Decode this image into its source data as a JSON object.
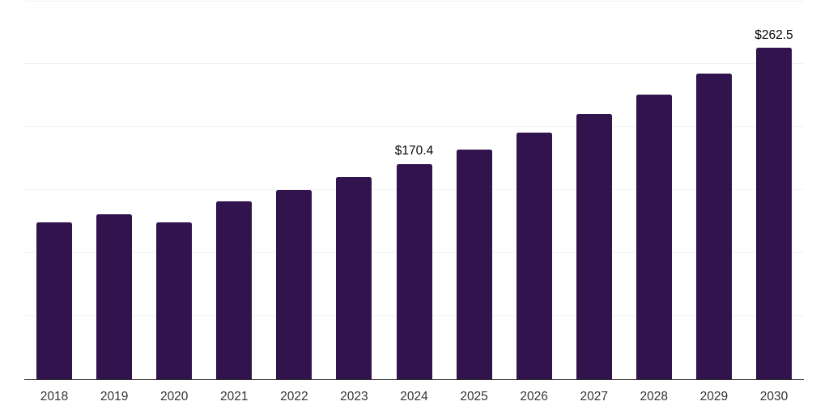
{
  "chart_data": {
    "type": "bar",
    "title": "",
    "xlabel": "",
    "ylabel": "",
    "categories": [
      "2018",
      "2019",
      "2020",
      "2021",
      "2022",
      "2023",
      "2024",
      "2025",
      "2026",
      "2027",
      "2028",
      "2029",
      "2030"
    ],
    "values": [
      123.9,
      130.3,
      124.2,
      141.0,
      149.9,
      159.8,
      170.4,
      182.2,
      195.5,
      210.2,
      225.3,
      242.5,
      262.5
    ],
    "labeled_points": [
      {
        "category": "2024",
        "label": "$170.4"
      },
      {
        "category": "2030",
        "label": "$262.5"
      }
    ],
    "ylim": [
      0,
      300
    ],
    "gridline_step": 50,
    "grid": true,
    "legend_position": "none",
    "y_axis_tick_labels_visible": false,
    "bar_color": "#31134d",
    "gridline_color": "#f2f2f2",
    "axis_line_color": "#2b2b2b",
    "x_tick_label_color": "#333333",
    "data_label_color": "#050505",
    "background_color": "#ffffff"
  }
}
